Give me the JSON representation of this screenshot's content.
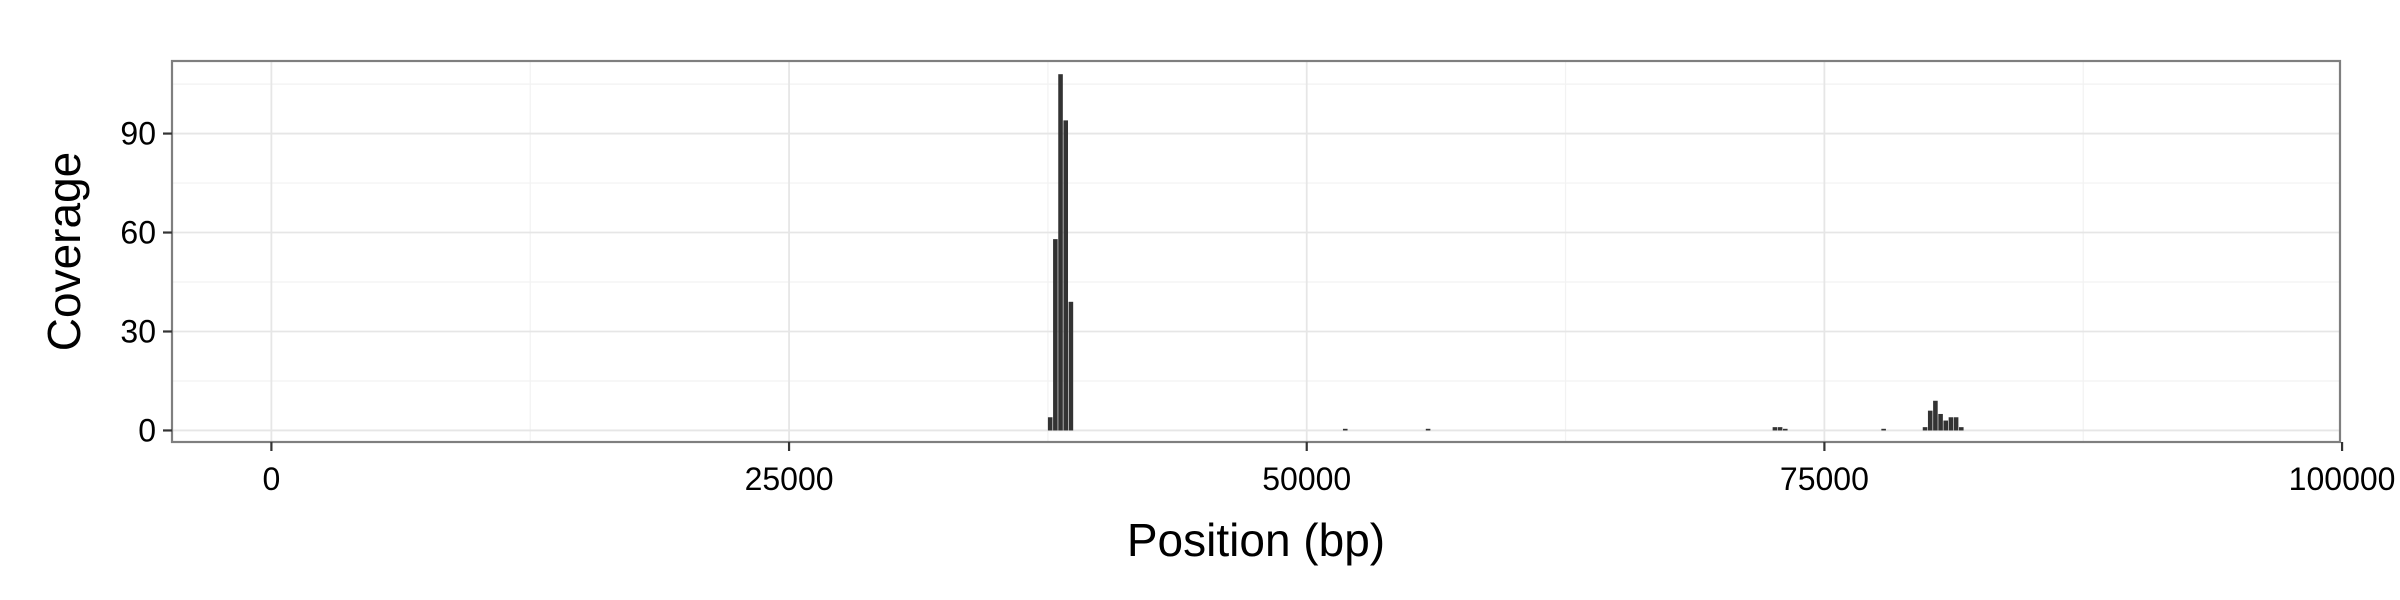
{
  "chart_data": {
    "type": "bar",
    "title": "",
    "xlabel": "Position (bp)",
    "ylabel": "Coverage",
    "xlim": [
      -4800,
      99900
    ],
    "ylim": [
      -3.5,
      112
    ],
    "x_ticks": [
      0,
      25000,
      50000,
      75000,
      100000
    ],
    "x_tick_labels": [
      "0",
      "25000",
      "50000",
      "75000",
      "100000"
    ],
    "y_ticks": [
      0,
      30,
      60,
      90
    ],
    "y_tick_labels": [
      "0",
      "30",
      "60",
      "90"
    ],
    "grid": true,
    "legend": "none",
    "bar_color": "#333333",
    "bin_width": 250,
    "bins": [
      {
        "x": 37500,
        "value": 4
      },
      {
        "x": 37750,
        "value": 58
      },
      {
        "x": 38000,
        "value": 108
      },
      {
        "x": 38250,
        "value": 94
      },
      {
        "x": 38500,
        "value": 39
      },
      {
        "x": 51750,
        "value": 0.5
      },
      {
        "x": 55750,
        "value": 0.5
      },
      {
        "x": 72500,
        "value": 1
      },
      {
        "x": 72750,
        "value": 1
      },
      {
        "x": 73000,
        "value": 0.5
      },
      {
        "x": 77750,
        "value": 0.5
      },
      {
        "x": 79750,
        "value": 1
      },
      {
        "x": 80000,
        "value": 6
      },
      {
        "x": 80250,
        "value": 9
      },
      {
        "x": 80500,
        "value": 5
      },
      {
        "x": 80750,
        "value": 3
      },
      {
        "x": 81000,
        "value": 4
      },
      {
        "x": 81250,
        "value": 4
      },
      {
        "x": 81500,
        "value": 1
      }
    ]
  }
}
